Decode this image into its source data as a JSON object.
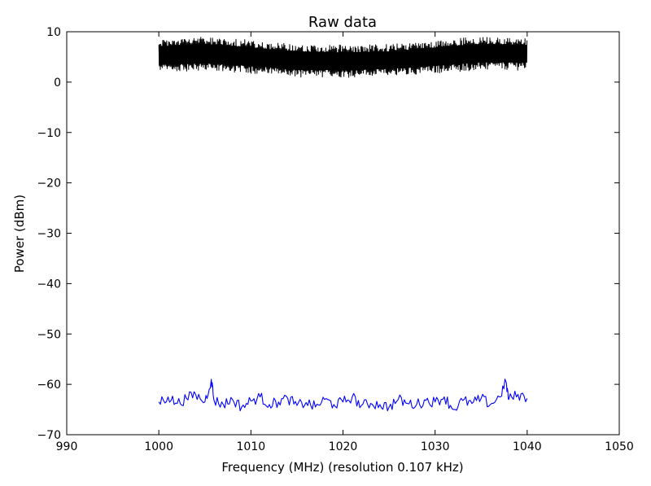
{
  "chart_data": {
    "type": "line",
    "title": "Raw data",
    "xlabel": "Frequency (MHz) (resolution 0.107 kHz)",
    "ylabel": "Power (dBm)",
    "xlim": [
      990,
      1050
    ],
    "ylim": [
      -70,
      10
    ],
    "x_ticks": [
      990,
      1000,
      1010,
      1020,
      1030,
      1040,
      1050
    ],
    "x_tick_labels": [
      "990",
      "1000",
      "1010",
      "1020",
      "1030",
      "1040",
      "1050"
    ],
    "y_ticks": [
      10,
      0,
      -10,
      -20,
      -30,
      -40,
      -50,
      -60,
      -70
    ],
    "y_tick_labels": [
      "10",
      "0",
      "−10",
      "−20",
      "−30",
      "−40",
      "−50",
      "−60",
      "−70"
    ],
    "grid": false,
    "legend": "none",
    "series": [
      {
        "color": "#000000",
        "style": "dense-noise-band",
        "x_range": [
          1000,
          1040
        ],
        "envelope_x": [
          1000,
          1005,
          1010,
          1015,
          1020,
          1025,
          1030,
          1035,
          1040
        ],
        "upper": [
          8.5,
          9.0,
          8.3,
          7.5,
          7.3,
          7.5,
          8.3,
          9.0,
          8.8
        ],
        "lower": [
          2.0,
          2.3,
          1.8,
          1.0,
          1.0,
          1.2,
          1.8,
          2.5,
          2.5
        ]
      },
      {
        "color": "#0000ff",
        "style": "line",
        "x": [
          1000,
          1001,
          1002,
          1003,
          1004,
          1005,
          1005.7,
          1006,
          1007,
          1008,
          1009,
          1010,
          1011,
          1012,
          1013,
          1014,
          1015,
          1016,
          1017,
          1018,
          1019,
          1020,
          1021,
          1022,
          1023,
          1024,
          1025,
          1026,
          1027,
          1028,
          1029,
          1030,
          1031,
          1032,
          1033,
          1034,
          1035,
          1036,
          1037,
          1037.7,
          1038,
          1039,
          1040
        ],
        "y": [
          -63.5,
          -62.5,
          -63.8,
          -62.8,
          -62.0,
          -63.5,
          -59.0,
          -63.2,
          -64.0,
          -63.0,
          -64.5,
          -63.3,
          -62.5,
          -64.0,
          -63.5,
          -62.8,
          -64.2,
          -63.6,
          -64.5,
          -63.0,
          -64.0,
          -63.5,
          -62.5,
          -64.2,
          -63.8,
          -64.0,
          -64.5,
          -63.0,
          -63.8,
          -64.0,
          -63.2,
          -63.5,
          -62.5,
          -65.0,
          -63.2,
          -63.8,
          -62.8,
          -64.0,
          -62.5,
          -59.5,
          -63.0,
          -62.0,
          -62.8
        ]
      }
    ]
  }
}
